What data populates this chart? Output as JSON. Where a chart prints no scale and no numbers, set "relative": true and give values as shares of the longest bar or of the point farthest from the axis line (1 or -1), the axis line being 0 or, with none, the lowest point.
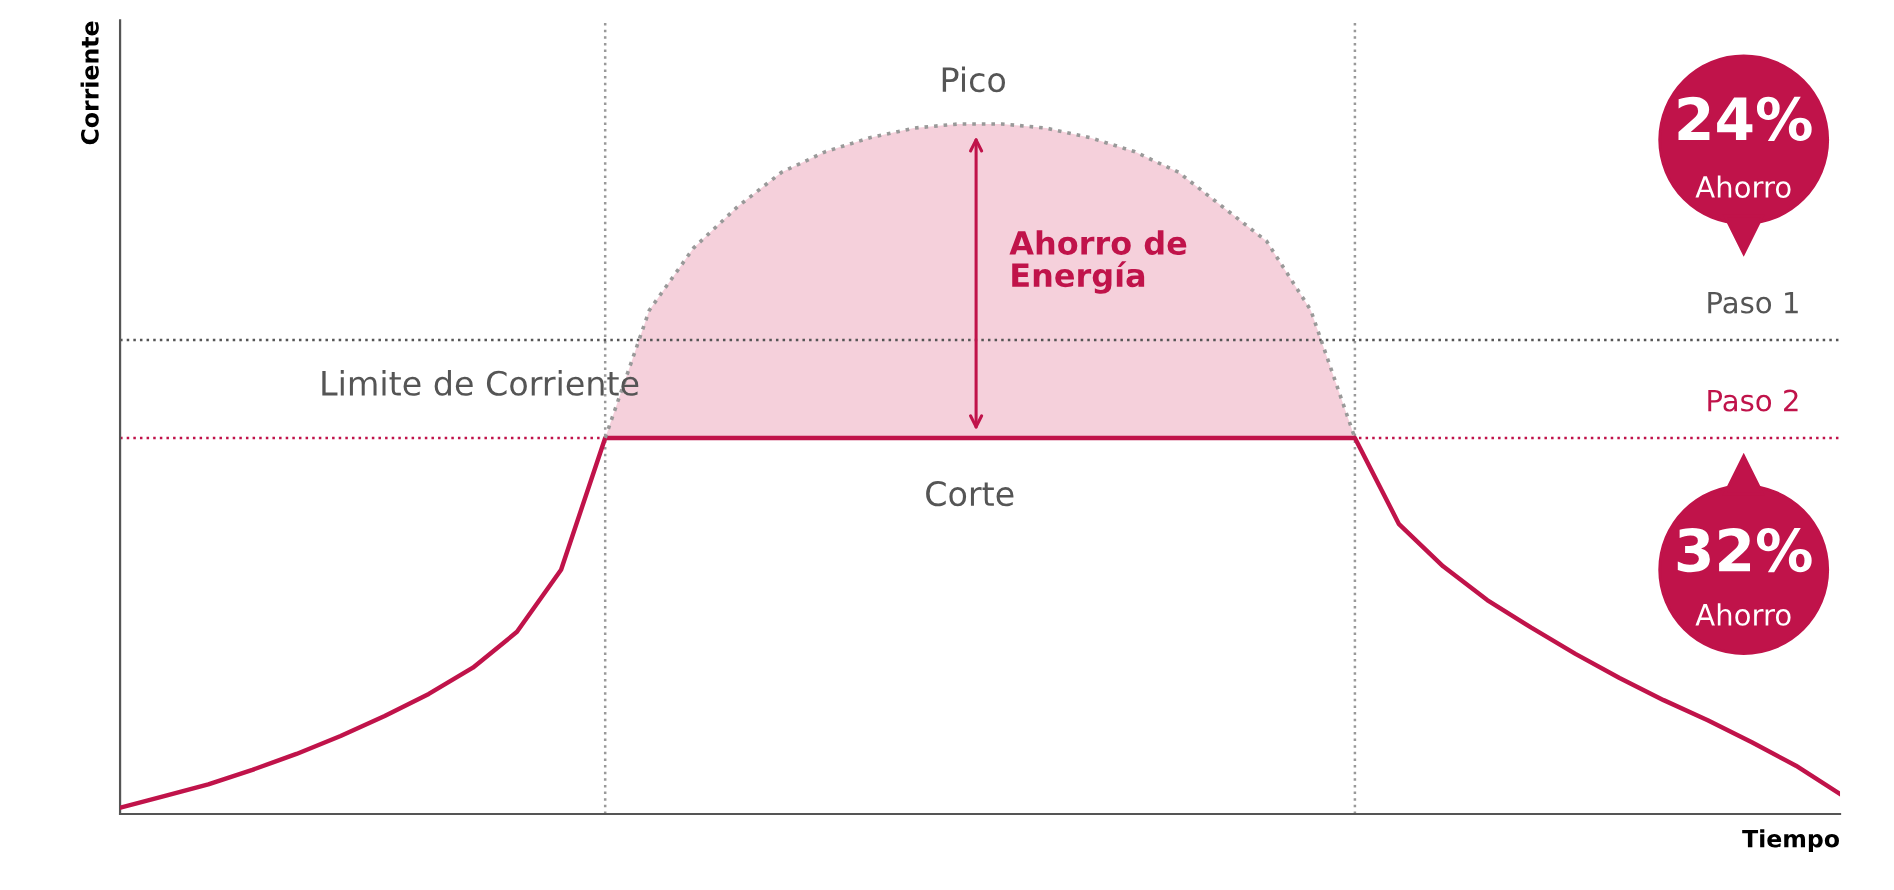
{
  "chart_data": {
    "type": "line",
    "relative": true,
    "xlabel": "Tiempo",
    "ylabel": "Corriente",
    "categories": [
      null,
      null,
      null,
      null,
      null,
      null,
      null,
      null,
      null,
      null,
      null,
      null,
      null,
      null,
      null,
      null,
      null,
      null,
      null,
      null,
      null,
      null,
      null,
      null,
      null,
      null,
      null,
      null,
      null,
      null,
      null,
      null,
      null,
      null,
      null,
      null,
      null,
      null,
      null,
      null
    ],
    "series": [
      {
        "color": "#c0134a",
        "line_style": "solid",
        "values": [
          0.009,
          0.026,
          0.043,
          0.064,
          0.087,
          0.113,
          0.142,
          0.174,
          0.212,
          0.264,
          0.354,
          0.545,
          0.545,
          0.545,
          0.545,
          0.545,
          0.545,
          0.545,
          0.545,
          0.545,
          0.545,
          0.545,
          0.545,
          0.545,
          0.545,
          0.545,
          0.545,
          0.545,
          0.545,
          0.42,
          0.359,
          0.31,
          0.27,
          0.232,
          0.197,
          0.165,
          0.136,
          0.104,
          0.07,
          0.029
        ]
      },
      {
        "color": "#999999",
        "line_style": "dotted",
        "values": [
          null,
          null,
          null,
          null,
          null,
          null,
          null,
          null,
          null,
          null,
          null,
          0.545,
          0.73,
          0.82,
          0.88,
          0.93,
          0.96,
          0.98,
          0.994,
          1,
          1,
          0.994,
          0.98,
          0.96,
          0.93,
          0.88,
          0.83,
          0.73,
          0.545,
          null,
          null,
          null,
          null,
          null,
          null,
          null,
          null,
          null,
          null,
          null
        ],
        "lower": [
          null,
          null,
          null,
          null,
          null,
          null,
          null,
          null,
          null,
          null,
          null,
          0.545,
          0.545,
          0.545,
          0.545,
          0.545,
          0.545,
          0.545,
          0.545,
          0.545,
          0.545,
          0.545,
          0.545,
          0.545,
          0.545,
          0.545,
          0.545,
          0.545,
          0.545,
          null,
          null,
          null,
          null,
          null,
          null,
          null,
          null,
          null,
          null,
          null
        ],
        "upper": [
          null,
          null,
          null,
          null,
          null,
          null,
          null,
          null,
          null,
          null,
          null,
          0.545,
          0.73,
          0.82,
          0.88,
          0.93,
          0.96,
          0.98,
          0.994,
          1,
          1,
          0.994,
          0.98,
          0.96,
          0.93,
          0.88,
          0.83,
          0.73,
          0.545,
          null,
          null,
          null,
          null,
          null,
          null,
          null,
          null,
          null,
          null,
          null
        ]
      }
    ],
    "ref_lines": [
      {
        "axis": "y",
        "value": 0.687,
        "label": "Paso 1",
        "color": "#555555",
        "line_style": "dotted"
      },
      {
        "axis": "y",
        "value": 0.545,
        "label": "Paso 2",
        "color": "#c0134a",
        "line_style": "dotted"
      }
    ],
    "annotations": [
      "Pico",
      "Ahorro de\nEnergía",
      "Limite de Corriente",
      "Corte",
      "24%",
      "Ahorro",
      "32%",
      "Ahorro"
    ]
  }
}
